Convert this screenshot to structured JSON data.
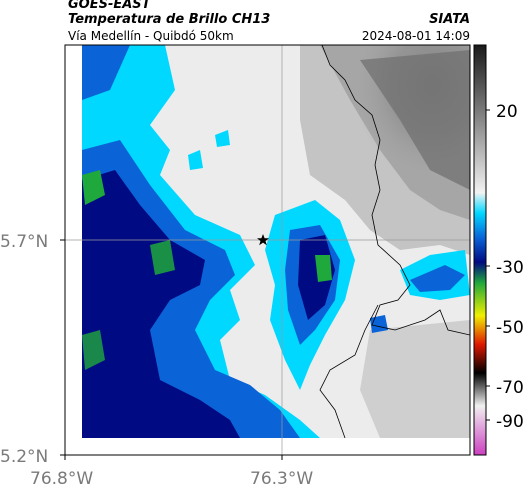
{
  "header": {
    "agency": "GOES-EAST",
    "product": "Temperatura de Brillo CH13",
    "organization": "SIATA",
    "subtitle": "Vía Medellín - Quibdó 50km",
    "datetime": "2024-08-01 14:09"
  },
  "map": {
    "lon_ticks": [
      "76.8°W",
      "76.3°W"
    ],
    "lat_ticks": [
      "5.7°N",
      "5.2°N"
    ],
    "marker": "star-icon"
  },
  "colorbar": {
    "labels": [
      "20",
      "-30",
      "-50",
      "-70",
      "-90"
    ],
    "colors": {
      "warm_light": "#f2f2f2",
      "warm_dark": "#1a1a1a",
      "cyan": "#00d8ff",
      "blue": "#0a64d8",
      "navy": "#000a82",
      "green": "#1fa83c",
      "yellow": "#f0f000",
      "red": "#e01800",
      "black": "#000000",
      "magenta": "#cc40c0"
    }
  }
}
